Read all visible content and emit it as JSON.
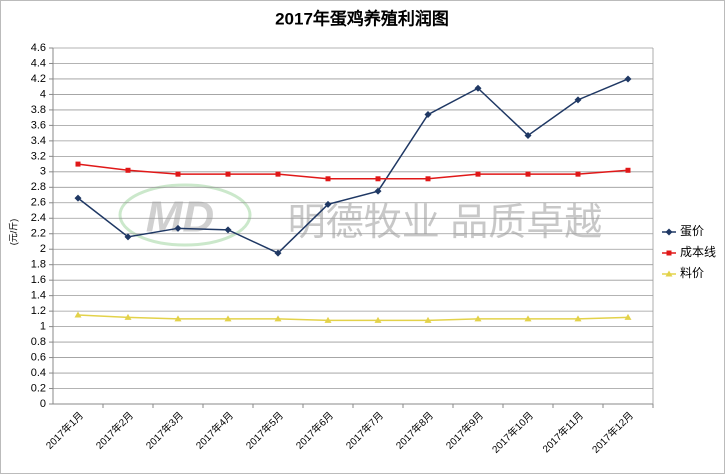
{
  "chart_data": {
    "type": "line",
    "title": "2017年蛋鸡养殖利润图",
    "y_label": "(元/斤)",
    "watermark": "明德牧业 品质卓越",
    "logo": "MD",
    "categories": [
      "2017年1月",
      "2017年2月",
      "2017年3月",
      "2017年4月",
      "2017年5月",
      "2017年6月",
      "2017年7月",
      "2017年8月",
      "2017年9月",
      "2017年10月",
      "2017年11月",
      "2017年12月"
    ],
    "series": [
      {
        "name": "蛋价",
        "color": "#1f3864",
        "marker": "diamond",
        "values": [
          2.66,
          2.16,
          2.27,
          2.25,
          1.95,
          2.58,
          2.75,
          3.74,
          4.08,
          3.47,
          3.93,
          4.2
        ]
      },
      {
        "name": "成本线",
        "color": "#e01818",
        "marker": "square",
        "values": [
          3.1,
          3.02,
          2.97,
          2.97,
          2.97,
          2.91,
          2.91,
          2.91,
          2.97,
          2.97,
          2.97,
          3.02
        ]
      },
      {
        "name": "料价",
        "color": "#e3d24a",
        "marker": "triangle",
        "values": [
          1.15,
          1.12,
          1.1,
          1.1,
          1.1,
          1.08,
          1.08,
          1.08,
          1.1,
          1.1,
          1.1,
          1.12
        ]
      }
    ],
    "ylim": [
      0,
      4.6
    ],
    "yticks": [
      0,
      0.2,
      0.4,
      0.6,
      0.8,
      1,
      1.2,
      1.4,
      1.6,
      1.8,
      2,
      2.2,
      2.4,
      2.6,
      2.8,
      3,
      3.2,
      3.4,
      3.6,
      3.8,
      4,
      4.2,
      4.4,
      4.6
    ],
    "grid": true,
    "legend": "right"
  }
}
